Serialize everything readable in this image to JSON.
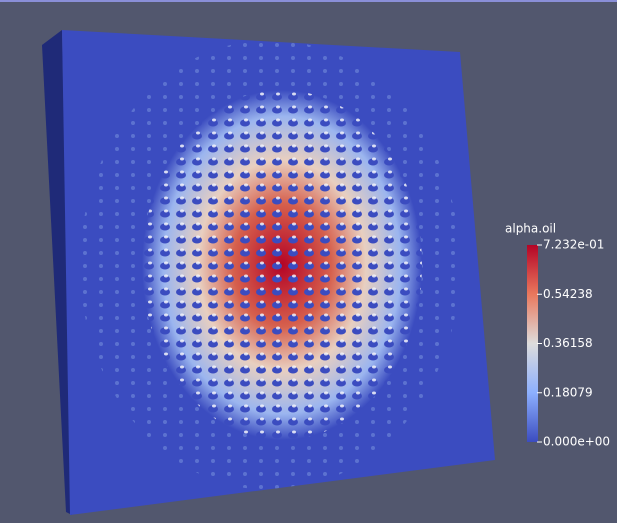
{
  "colorbar": {
    "title": "alpha.oil",
    "range": [
      0,
      0.7232
    ],
    "ticks": [
      {
        "value": 0.7232,
        "label": "7.232e-01"
      },
      0.54238,
      0.36158,
      0.18079,
      {
        "value": 0,
        "label": "0.000e+00"
      }
    ]
  }
}
